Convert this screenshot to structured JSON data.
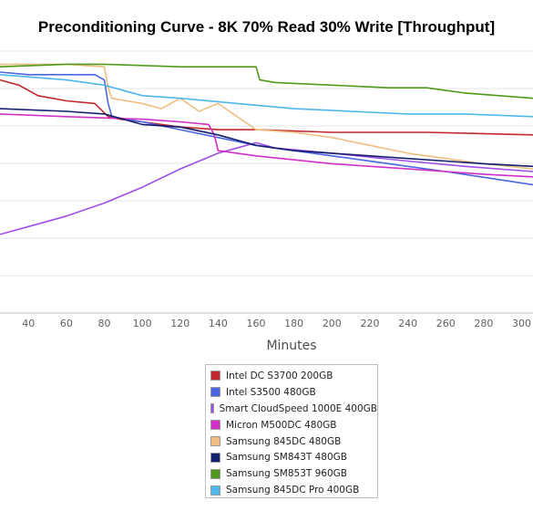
{
  "chart_data": {
    "type": "line",
    "title": "Preconditioning Curve - 8K 70% Read 30% Write [Throughput]",
    "xlabel": "Minutes",
    "ylabel": "",
    "x_ticks": [
      40,
      60,
      80,
      100,
      120,
      140,
      160,
      180,
      200,
      220,
      240,
      260,
      280,
      300
    ],
    "xlim": [
      25,
      306
    ],
    "ylim": [
      0,
      100
    ],
    "grid": true,
    "legend": "bottom-center",
    "series": [
      {
        "name": "Intel DC S3700 200GB",
        "color": "#c0282d",
        "x": [
          25,
          35,
          45,
          60,
          75,
          82,
          88,
          100,
          120,
          140,
          160,
          200,
          250,
          306
        ],
        "y": [
          89,
          87,
          83,
          81,
          80,
          75,
          74,
          73,
          71,
          70,
          70,
          69,
          69,
          68
        ]
      },
      {
        "name": "Intel S3500 480GB",
        "color": "#4a66e0",
        "x": [
          25,
          40,
          60,
          75,
          80,
          82,
          84,
          100,
          120,
          140,
          160,
          180,
          200,
          230,
          260,
          306
        ],
        "y": [
          92,
          91,
          91,
          91,
          89,
          80,
          75,
          73,
          70,
          67,
          64,
          62,
          60,
          57,
          54,
          49
        ]
      },
      {
        "name": "Smart CloudSpeed 1000E 400GB",
        "color": "#a04ee8",
        "x": [
          25,
          40,
          60,
          80,
          100,
          120,
          140,
          160,
          170,
          200,
          240,
          270,
          306
        ],
        "y": [
          30,
          33,
          37,
          42,
          48,
          55,
          61,
          65,
          63,
          61,
          58,
          56,
          54
        ]
      },
      {
        "name": "Micron M500DC 480GB",
        "color": "#d12fc8",
        "x": [
          25,
          60,
          100,
          120,
          135,
          138,
          140,
          160,
          200,
          240,
          280,
          306
        ],
        "y": [
          76,
          75,
          74,
          73,
          72,
          68,
          62,
          60,
          57,
          55,
          53,
          52
        ]
      },
      {
        "name": "Samsung 845DC 480GB",
        "color": "#eebe82",
        "x": [
          25,
          60,
          80,
          82,
          84,
          100,
          110,
          120,
          130,
          140,
          160,
          180,
          200,
          220,
          240,
          260,
          280,
          306
        ],
        "y": [
          95,
          95,
          94,
          86,
          82,
          80,
          78,
          82,
          77,
          80,
          70,
          69,
          67,
          64,
          61,
          59,
          57,
          55
        ]
      },
      {
        "name": "Samsung SM843T 480GB",
        "color": "#141e6e",
        "x": [
          25,
          60,
          80,
          100,
          120,
          140,
          160,
          180,
          200,
          220,
          240,
          260,
          280,
          306
        ],
        "y": [
          78,
          77,
          76,
          72,
          71,
          68,
          64,
          62,
          61,
          60,
          59,
          58,
          57,
          56
        ]
      },
      {
        "name": "Samsung SM853T 960GB",
        "color": "#4f9a1b",
        "x": [
          25,
          60,
          80,
          120,
          160,
          162,
          170,
          200,
          230,
          250,
          260,
          270,
          306
        ],
        "y": [
          94,
          95,
          95,
          94,
          94,
          89,
          88,
          87,
          86,
          86,
          85,
          84,
          82
        ]
      },
      {
        "name": "Samsung 845DC Pro 400GB",
        "color": "#4fb8ea",
        "x": [
          25,
          60,
          80,
          100,
          120,
          150,
          180,
          210,
          240,
          270,
          306
        ],
        "y": [
          91,
          89,
          87,
          83,
          82,
          80,
          78,
          77,
          76,
          76,
          75
        ]
      }
    ]
  }
}
